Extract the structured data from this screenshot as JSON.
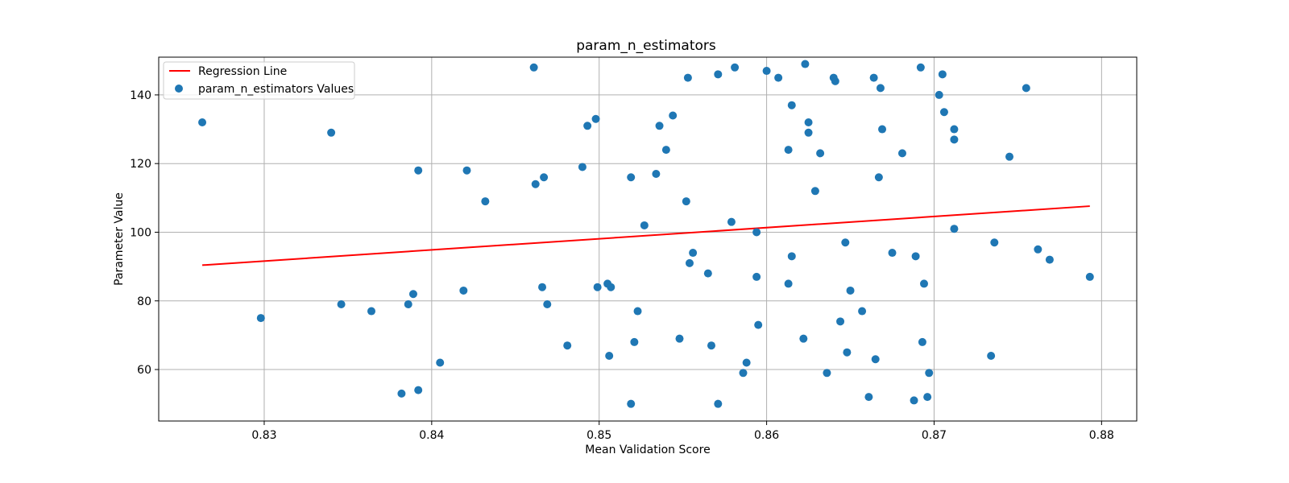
{
  "chart_data": {
    "type": "scatter",
    "title": "param_n_estimators",
    "xlabel": "Mean Validation Score",
    "ylabel": "Parameter Value",
    "xlim": [
      0.8237,
      0.8821
    ],
    "ylim": [
      45,
      151
    ],
    "xticks": [
      0.83,
      0.84,
      0.85,
      0.86,
      0.87,
      0.88
    ],
    "xtick_labels": [
      "0.83",
      "0.84",
      "0.85",
      "0.86",
      "0.87",
      "0.88"
    ],
    "yticks": [
      60,
      80,
      100,
      120,
      140
    ],
    "ytick_labels": [
      "60",
      "80",
      "100",
      "120",
      "140"
    ],
    "grid": true,
    "legend_position": "top-left",
    "series": [
      {
        "name": "Regression Line",
        "kind": "line",
        "color": "#ff0000",
        "x": [
          0.8263,
          0.8793
        ],
        "y": [
          90.4,
          107.6
        ]
      },
      {
        "name": "param_n_estimators Values",
        "kind": "scatter",
        "color": "#1f77b4",
        "points": [
          [
            0.8263,
            132
          ],
          [
            0.8298,
            75
          ],
          [
            0.834,
            129
          ],
          [
            0.8346,
            79
          ],
          [
            0.8364,
            77
          ],
          [
            0.8382,
            53
          ],
          [
            0.8386,
            79
          ],
          [
            0.8389,
            82
          ],
          [
            0.8392,
            118
          ],
          [
            0.8392,
            54
          ],
          [
            0.8405,
            62
          ],
          [
            0.8419,
            83
          ],
          [
            0.8421,
            118
          ],
          [
            0.8432,
            109
          ],
          [
            0.8461,
            148
          ],
          [
            0.8462,
            114
          ],
          [
            0.8466,
            84
          ],
          [
            0.8467,
            116
          ],
          [
            0.8469,
            79
          ],
          [
            0.8481,
            67
          ],
          [
            0.849,
            119
          ],
          [
            0.8493,
            131
          ],
          [
            0.8498,
            133
          ],
          [
            0.8499,
            84
          ],
          [
            0.8505,
            85
          ],
          [
            0.8506,
            64
          ],
          [
            0.8507,
            84
          ],
          [
            0.8519,
            116
          ],
          [
            0.8519,
            50
          ],
          [
            0.8521,
            68
          ],
          [
            0.8523,
            77
          ],
          [
            0.8527,
            102
          ],
          [
            0.8534,
            117
          ],
          [
            0.8536,
            131
          ],
          [
            0.854,
            124
          ],
          [
            0.8544,
            134
          ],
          [
            0.8548,
            69
          ],
          [
            0.8552,
            109
          ],
          [
            0.8553,
            145
          ],
          [
            0.8554,
            91
          ],
          [
            0.8556,
            94
          ],
          [
            0.8565,
            88
          ],
          [
            0.8567,
            67
          ],
          [
            0.8571,
            146
          ],
          [
            0.8571,
            50
          ],
          [
            0.8579,
            103
          ],
          [
            0.8581,
            148
          ],
          [
            0.8586,
            59
          ],
          [
            0.8588,
            62
          ],
          [
            0.8594,
            87
          ],
          [
            0.8594,
            100
          ],
          [
            0.8595,
            73
          ],
          [
            0.86,
            147
          ],
          [
            0.8607,
            145
          ],
          [
            0.8613,
            124
          ],
          [
            0.8613,
            85
          ],
          [
            0.8615,
            137
          ],
          [
            0.8615,
            93
          ],
          [
            0.8622,
            69
          ],
          [
            0.8623,
            149
          ],
          [
            0.8625,
            132
          ],
          [
            0.8625,
            129
          ],
          [
            0.8629,
            112
          ],
          [
            0.8632,
            123
          ],
          [
            0.8636,
            59
          ],
          [
            0.864,
            145
          ],
          [
            0.8641,
            144
          ],
          [
            0.8644,
            74
          ],
          [
            0.8647,
            97
          ],
          [
            0.8648,
            65
          ],
          [
            0.865,
            83
          ],
          [
            0.8657,
            77
          ],
          [
            0.8661,
            52
          ],
          [
            0.8664,
            145
          ],
          [
            0.8665,
            63
          ],
          [
            0.8667,
            116
          ],
          [
            0.8668,
            142
          ],
          [
            0.8669,
            130
          ],
          [
            0.8675,
            94
          ],
          [
            0.8681,
            123
          ],
          [
            0.8688,
            51
          ],
          [
            0.8689,
            93
          ],
          [
            0.8692,
            148
          ],
          [
            0.8693,
            68
          ],
          [
            0.8694,
            85
          ],
          [
            0.8696,
            52
          ],
          [
            0.8697,
            59
          ],
          [
            0.8703,
            140
          ],
          [
            0.8705,
            146
          ],
          [
            0.8706,
            135
          ],
          [
            0.8712,
            130
          ],
          [
            0.8712,
            127
          ],
          [
            0.8712,
            101
          ],
          [
            0.8734,
            64
          ],
          [
            0.8736,
            97
          ],
          [
            0.8745,
            122
          ],
          [
            0.8755,
            142
          ],
          [
            0.8762,
            95
          ],
          [
            0.8769,
            92
          ],
          [
            0.8793,
            87
          ]
        ]
      }
    ]
  }
}
